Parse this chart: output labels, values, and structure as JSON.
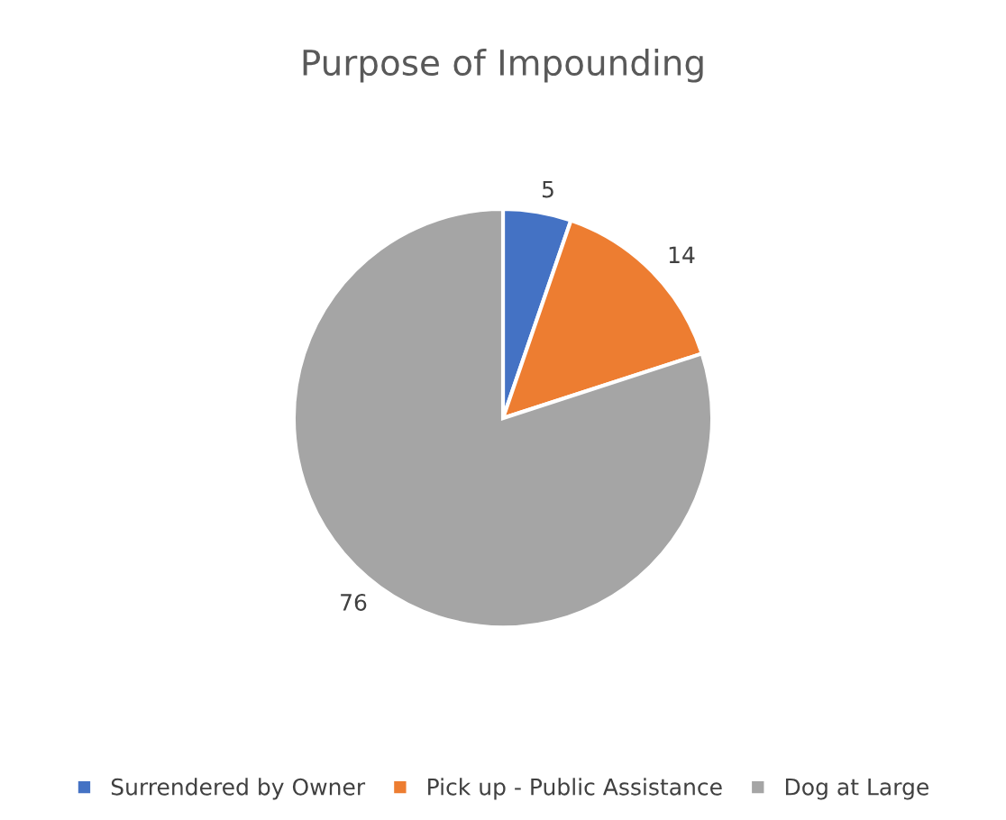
{
  "chart_data": {
    "type": "pie",
    "title": "Purpose of Impounding",
    "categories": [
      "Surrendered by Owner",
      "Pick up - Public Assistance",
      "Dog at Large"
    ],
    "values": [
      5,
      14,
      76
    ],
    "colors": [
      "#4472c4",
      "#ed7d31",
      "#a5a5a5"
    ],
    "data_labels": true,
    "legend": "bottom"
  }
}
